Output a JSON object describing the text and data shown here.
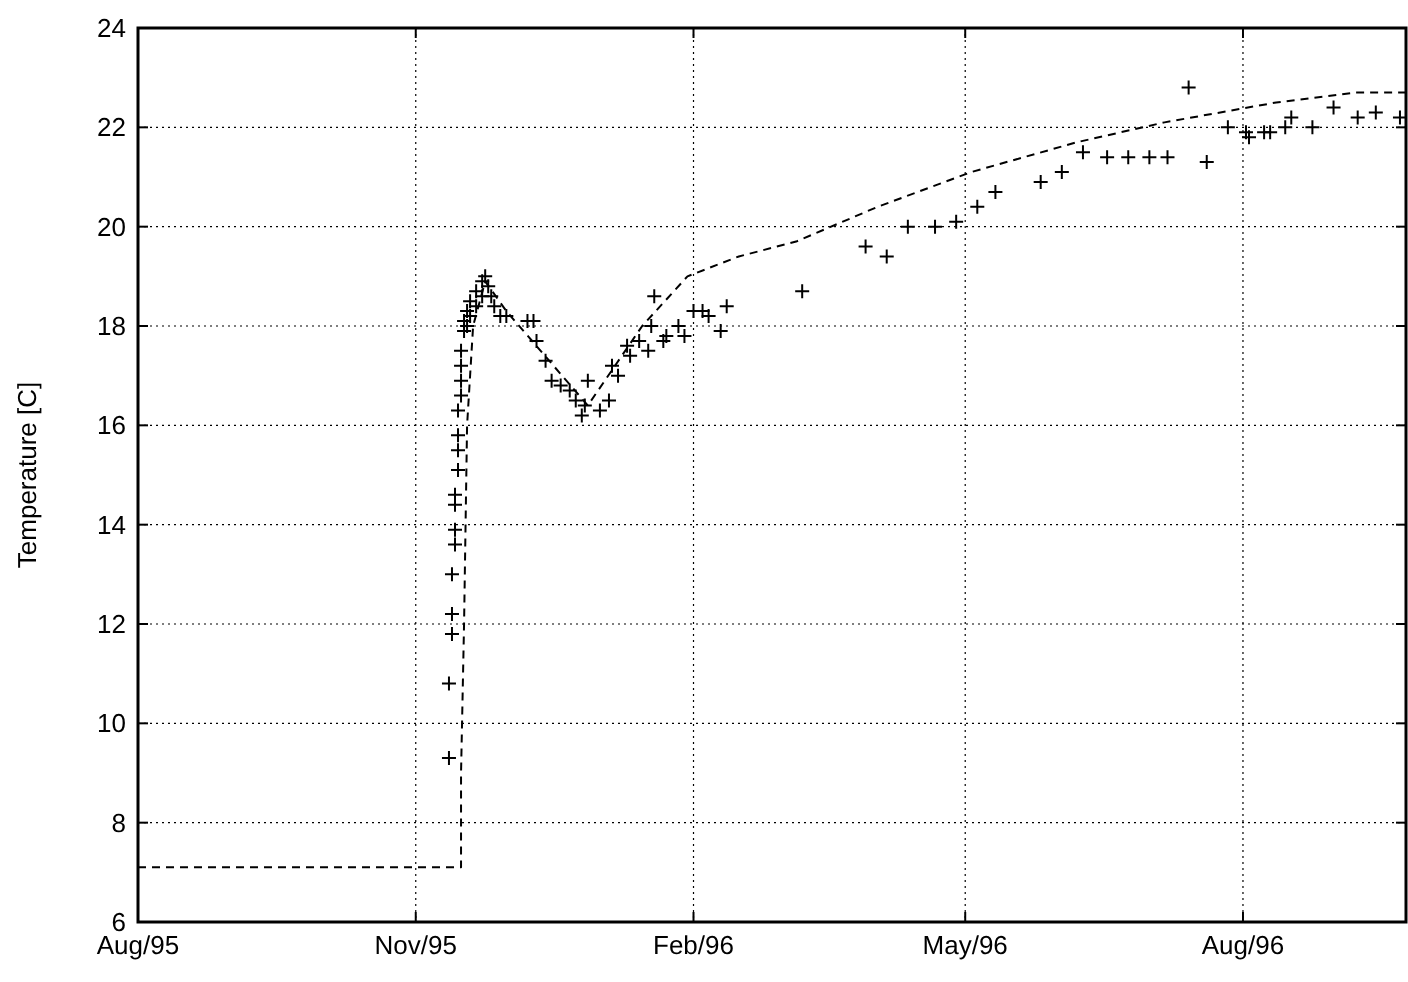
{
  "chart_data": {
    "type": "scatter",
    "ylabel": "Temperature [C]",
    "xlim": [
      "1995-08-01",
      "1996-09-24"
    ],
    "ylim": [
      6,
      24
    ],
    "xticks": [
      {
        "value": "1995-08-01",
        "label": "Aug/95"
      },
      {
        "value": "1995-11-01",
        "label": "Nov/95"
      },
      {
        "value": "1996-02-01",
        "label": "Feb/96"
      },
      {
        "value": "1996-05-01",
        "label": "May/96"
      },
      {
        "value": "1996-08-01",
        "label": "Aug/96"
      }
    ],
    "yticks": [
      6,
      8,
      10,
      12,
      14,
      16,
      18,
      20,
      22,
      24
    ],
    "grid": true,
    "series": [
      {
        "type": "line",
        "color": "#000000",
        "line_style": "dashed",
        "marker": "none",
        "x": [
          "1995-08-01",
          "1995-11-16",
          "1995-11-16",
          "1995-11-17",
          "1995-11-18",
          "1995-11-20",
          "1995-11-24",
          "1995-12-01",
          "1995-12-28",
          "1996-01-15",
          "1996-01-30",
          "1996-02-16",
          "1996-03-06",
          "1996-04-02",
          "1996-05-03",
          "1996-06-07",
          "1996-07-06",
          "1996-08-12",
          "1996-09-07",
          "1996-09-24"
        ],
        "values": [
          7.1,
          7.1,
          9,
          12,
          16,
          18,
          18.9,
          18.3,
          16.4,
          18,
          19,
          19.4,
          19.7,
          20.4,
          21.1,
          21.7,
          22.1,
          22.5,
          22.7,
          22.7
        ]
      },
      {
        "type": "scatter",
        "color": "#000000",
        "marker": "cross",
        "x": [
          "1995-11-12",
          "1995-11-12",
          "1995-11-13",
          "1995-11-13",
          "1995-11-13",
          "1995-11-14",
          "1995-11-14",
          "1995-11-14",
          "1995-11-14",
          "1995-11-15",
          "1995-11-15",
          "1995-11-15",
          "1995-11-15",
          "1995-11-16",
          "1995-11-16",
          "1995-11-16",
          "1995-11-16",
          "1995-11-17",
          "1995-11-17",
          "1995-11-18",
          "1995-11-18",
          "1995-11-19",
          "1995-11-19",
          "1995-11-21",
          "1995-11-21",
          "1995-11-23",
          "1995-11-23",
          "1995-11-24",
          "1995-11-25",
          "1995-11-26",
          "1995-11-27",
          "1995-11-29",
          "1995-12-01",
          "1995-12-08",
          "1995-12-10",
          "1995-12-11",
          "1995-12-14",
          "1995-12-16",
          "1995-12-19",
          "1995-12-22",
          "1995-12-24",
          "1995-12-26",
          "1995-12-27",
          "1995-12-28",
          "1996-01-01",
          "1996-01-04",
          "1996-01-05",
          "1996-01-07",
          "1996-01-10",
          "1996-01-11",
          "1996-01-14",
          "1996-01-17",
          "1996-01-18",
          "1996-01-19",
          "1996-01-22",
          "1996-01-23",
          "1996-01-27",
          "1996-01-29",
          "1996-02-01",
          "1996-02-04",
          "1996-02-06",
          "1996-02-10",
          "1996-02-12",
          "1996-03-08",
          "1996-03-29",
          "1996-04-05",
          "1996-04-12",
          "1996-04-21",
          "1996-04-28",
          "1996-05-05",
          "1996-05-11",
          "1996-05-26",
          "1996-06-02",
          "1996-06-09",
          "1996-06-17",
          "1996-06-24",
          "1996-07-01",
          "1996-07-07",
          "1996-07-14",
          "1996-07-20",
          "1996-07-27",
          "1996-08-02",
          "1996-08-03",
          "1996-08-08",
          "1996-08-10",
          "1996-08-15",
          "1996-08-17",
          "1996-08-24",
          "1996-08-31",
          "1996-09-08",
          "1996-09-14",
          "1996-09-22"
        ],
        "values": [
          9.3,
          10.8,
          11.8,
          12.2,
          13.0,
          13.6,
          13.9,
          14.4,
          14.6,
          15.1,
          15.5,
          15.8,
          16.3,
          16.6,
          16.9,
          17.2,
          17.5,
          17.9,
          18.1,
          18.0,
          18.3,
          18.2,
          18.5,
          18.4,
          18.7,
          18.6,
          18.9,
          19.0,
          18.8,
          18.6,
          18.4,
          18.2,
          18.2,
          18.1,
          18.1,
          17.7,
          17.3,
          16.9,
          16.8,
          16.7,
          16.5,
          16.2,
          16.4,
          16.9,
          16.3,
          16.5,
          17.2,
          17.0,
          17.6,
          17.4,
          17.7,
          17.5,
          18.0,
          18.6,
          17.7,
          17.8,
          18.0,
          17.8,
          18.3,
          18.3,
          18.2,
          17.9,
          18.4,
          18.7,
          19.6,
          19.4,
          20.0,
          20.0,
          20.1,
          20.4,
          20.7,
          20.9,
          21.1,
          21.5,
          21.4,
          21.4,
          21.4,
          21.4,
          22.8,
          21.3,
          22.0,
          21.9,
          21.8,
          21.9,
          21.9,
          22.0,
          22.2,
          22.0,
          22.4,
          22.2,
          22.3,
          22.2
        ]
      }
    ]
  }
}
